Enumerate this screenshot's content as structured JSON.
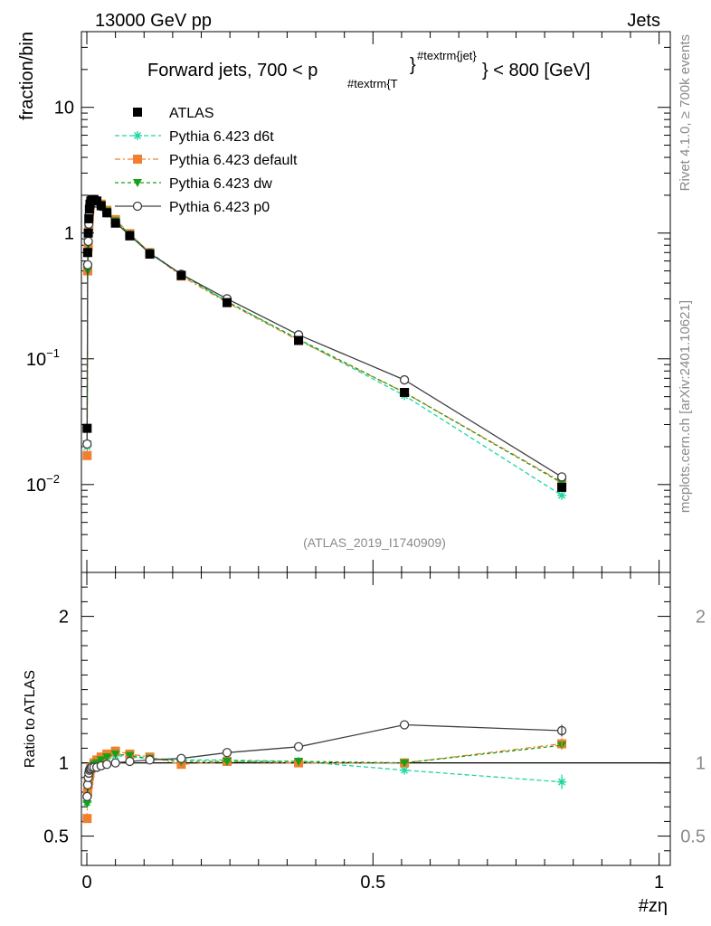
{
  "header": {
    "energy": "13000 GeV pp",
    "process": "Jets"
  },
  "title": {
    "main": "Forward jets, 700 < p",
    "sub": "#textrm{T",
    "close": "}",
    "sup": "#textrm{jet}",
    "tail": "} < 800 [GeV]"
  },
  "side_labels": {
    "rivet": "Rivet 4.1.0, ≥ 700k events",
    "mcplots": "mcplots.cern.ch [arXiv:2401.10621]"
  },
  "analysis_id": "(ATLAS_2019_I1740909)",
  "chart_data": [
    {
      "type": "scatter",
      "panel": "main",
      "ylabel": "fraction/bin",
      "xlabel": "#zη",
      "yscale": "log",
      "xlim": [
        0,
        1
      ],
      "ylim": [
        0.002,
        40
      ],
      "yticks": [
        {
          "value": 0.01,
          "base": "10",
          "exp": "−2"
        },
        {
          "value": 0.1,
          "base": "10",
          "exp": "−1"
        },
        {
          "value": 1,
          "base": "1",
          "exp": ""
        },
        {
          "value": 10,
          "base": "10",
          "exp": ""
        }
      ],
      "x": [
        0.0005,
        0.0015,
        0.0025,
        0.0035,
        0.0045,
        0.0055,
        0.007,
        0.009,
        0.0125,
        0.0175,
        0.025,
        0.035,
        0.05,
        0.075,
        0.11,
        0.165,
        0.245,
        0.37,
        0.555,
        0.83
      ],
      "series": [
        {
          "name": "ATLAS",
          "color": "#000000",
          "marker": "square",
          "dash": "none",
          "values": [
            0.028,
            0.7,
            1.0,
            1.3,
            1.55,
            1.7,
            1.8,
            1.85,
            1.85,
            1.8,
            1.65,
            1.45,
            1.2,
            0.95,
            0.68,
            0.46,
            0.28,
            0.14,
            0.054,
            0.0095
          ]
        },
        {
          "name": "Pythia 6.423 d6t",
          "color": "#1dd6a0",
          "marker": "star",
          "dash": "5,3",
          "values": [
            0.02,
            0.5,
            0.78,
            1.1,
            1.35,
            1.55,
            1.72,
            1.78,
            1.8,
            1.78,
            1.68,
            1.5,
            1.25,
            0.98,
            0.7,
            0.47,
            0.285,
            0.142,
            0.051,
            0.0082
          ]
        },
        {
          "name": "Pythia 6.423 default",
          "color": "#f08030",
          "marker": "square",
          "dash": "6,3,2,3",
          "values": [
            0.017,
            0.5,
            0.78,
            1.1,
            1.35,
            1.55,
            1.72,
            1.78,
            1.78,
            1.78,
            1.7,
            1.52,
            1.28,
            0.99,
            0.7,
            0.455,
            0.28,
            0.14,
            0.054,
            0.0105
          ]
        },
        {
          "name": "Pythia 6.423 dw",
          "color": "#18a018",
          "marker": "triangle-down",
          "dash": "4,3",
          "values": [
            0.021,
            0.5,
            0.8,
            1.12,
            1.37,
            1.56,
            1.73,
            1.78,
            1.8,
            1.77,
            1.68,
            1.5,
            1.25,
            0.98,
            0.7,
            0.47,
            0.285,
            0.143,
            0.054,
            0.0103
          ]
        },
        {
          "name": "Pythia 6.423 p0",
          "color": "#404040",
          "marker": "circle",
          "dash": "none",
          "values": [
            0.021,
            0.56,
            0.86,
            1.18,
            1.42,
            1.58,
            1.7,
            1.74,
            1.76,
            1.73,
            1.63,
            1.45,
            1.21,
            0.96,
            0.69,
            0.47,
            0.3,
            0.155,
            0.068,
            0.0115
          ]
        }
      ]
    },
    {
      "type": "scatter",
      "panel": "ratio",
      "ylabel": "Ratio to ATLAS",
      "xlabel": "#zη",
      "xlim": [
        0,
        1
      ],
      "ylim": [
        0.3,
        2.3
      ],
      "yticks": [
        0.5,
        1,
        2
      ],
      "xticks": [
        0,
        0.5,
        1
      ],
      "x": [
        0.0005,
        0.0015,
        0.0025,
        0.0035,
        0.0045,
        0.0055,
        0.007,
        0.009,
        0.0125,
        0.0175,
        0.025,
        0.035,
        0.05,
        0.075,
        0.11,
        0.165,
        0.245,
        0.37,
        0.555,
        0.83
      ],
      "series": [
        {
          "name": "Pythia 6.423 d6t",
          "color": "#1dd6a0",
          "marker": "star",
          "dash": "5,3",
          "values": [
            0.73,
            0.78,
            0.83,
            0.87,
            0.9,
            0.93,
            0.95,
            0.97,
            0.98,
            0.99,
            1.02,
            1.04,
            1.05,
            1.04,
            1.03,
            1.02,
            1.02,
            1.01,
            0.95,
            0.87
          ]
        },
        {
          "name": "Pythia 6.423 default",
          "color": "#f08030",
          "marker": "square",
          "dash": "6,3,2,3",
          "values": [
            0.62,
            0.8,
            0.85,
            0.88,
            0.91,
            0.93,
            0.96,
            0.97,
            1.0,
            1.02,
            1.04,
            1.06,
            1.08,
            1.06,
            1.04,
            0.99,
            1.01,
            1.0,
            1.0,
            1.13
          ]
        },
        {
          "name": "Pythia 6.423 dw",
          "color": "#18a018",
          "marker": "triangle-down",
          "dash": "4,3",
          "values": [
            0.72,
            0.76,
            0.84,
            0.88,
            0.9,
            0.92,
            0.95,
            0.97,
            0.99,
            1.0,
            1.02,
            1.04,
            1.06,
            1.05,
            1.03,
            1.01,
            1.01,
            1.01,
            1.0,
            1.12
          ]
        },
        {
          "name": "Pythia 6.423 p0",
          "color": "#404040",
          "marker": "circle",
          "dash": "none",
          "values": [
            0.77,
            0.85,
            0.9,
            0.93,
            0.95,
            0.96,
            0.96,
            0.97,
            0.97,
            0.97,
            0.98,
            0.99,
            1.0,
            1.01,
            1.02,
            1.03,
            1.07,
            1.11,
            1.26,
            1.22
          ]
        }
      ]
    }
  ]
}
